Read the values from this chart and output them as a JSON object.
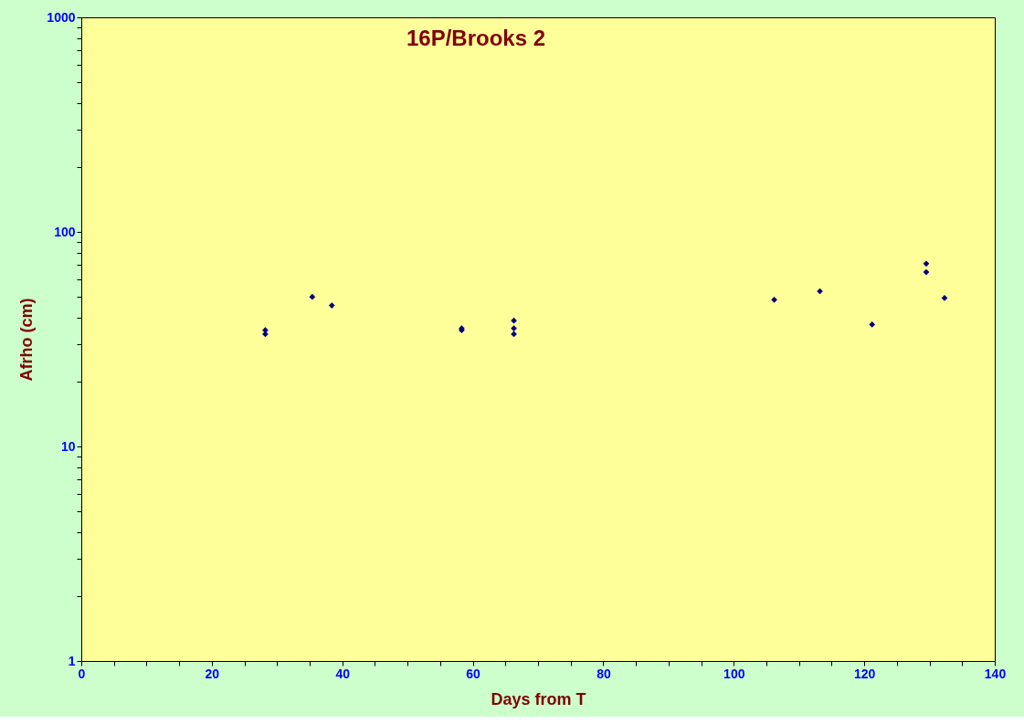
{
  "chart_data": {
    "type": "scatter",
    "title": "16P/Brooks 2",
    "xlabel": "Days from T",
    "ylabel": "Afrho (cm)",
    "x": [
      28.2,
      28.2,
      35.4,
      38.4,
      58.3,
      58.3,
      66.3,
      66.3,
      66.3,
      106.2,
      113.2,
      121.2,
      129.5,
      129.5,
      132.3
    ],
    "series": [
      {
        "color": "#000080",
        "values": [
          34.8,
          33.4,
          49.8,
          45.4,
          35.5,
          34.8,
          38.6,
          35.5,
          33.4,
          48.3,
          52.9,
          37.0,
          71.1,
          64.9,
          49.2
        ]
      }
    ],
    "marker": "diamond",
    "log": "y",
    "grid": false,
    "xlim": [
      0,
      140
    ],
    "xticks": [
      0,
      {
        "value": 5,
        "label": null
      },
      {
        "value": 10,
        "label": null
      },
      {
        "value": 15,
        "label": null
      },
      20,
      {
        "value": 25,
        "label": null
      },
      {
        "value": 30,
        "label": null
      },
      {
        "value": 35,
        "label": null
      },
      40,
      {
        "value": 45,
        "label": null
      },
      {
        "value": 50,
        "label": null
      },
      {
        "value": 55,
        "label": null
      },
      60,
      {
        "value": 65,
        "label": null
      },
      {
        "value": 70,
        "label": null
      },
      {
        "value": 75,
        "label": null
      },
      80,
      {
        "value": 85,
        "label": null
      },
      {
        "value": 90,
        "label": null
      },
      {
        "value": 95,
        "label": null
      },
      100,
      {
        "value": 105,
        "label": null
      },
      {
        "value": 110,
        "label": null
      },
      {
        "value": 115,
        "label": null
      },
      120,
      {
        "value": 125,
        "label": null
      },
      {
        "value": 130,
        "label": null
      },
      {
        "value": 135,
        "label": null
      },
      140
    ],
    "ylim": [
      1,
      1000
    ],
    "yticks": [
      1,
      {
        "value": 2,
        "label": null
      },
      {
        "value": 3,
        "label": null
      },
      {
        "value": 4,
        "label": null
      },
      {
        "value": 5,
        "label": null
      },
      {
        "value": 6,
        "label": null
      },
      {
        "value": 7,
        "label": null
      },
      {
        "value": 8,
        "label": null
      },
      {
        "value": 9,
        "label": null
      },
      10,
      {
        "value": 20,
        "label": null
      },
      {
        "value": 30,
        "label": null
      },
      {
        "value": 40,
        "label": null
      },
      {
        "value": 50,
        "label": null
      },
      {
        "value": 60,
        "label": null
      },
      {
        "value": 70,
        "label": null
      },
      {
        "value": 80,
        "label": null
      },
      {
        "value": 90,
        "label": null
      },
      100,
      {
        "value": 200,
        "label": null
      },
      {
        "value": 300,
        "label": null
      },
      {
        "value": 400,
        "label": null
      },
      {
        "value": 500,
        "label": null
      },
      {
        "value": 600,
        "label": null
      },
      {
        "value": 700,
        "label": null
      },
      {
        "value": 800,
        "label": null
      },
      {
        "value": 900,
        "label": null
      },
      1000
    ]
  }
}
